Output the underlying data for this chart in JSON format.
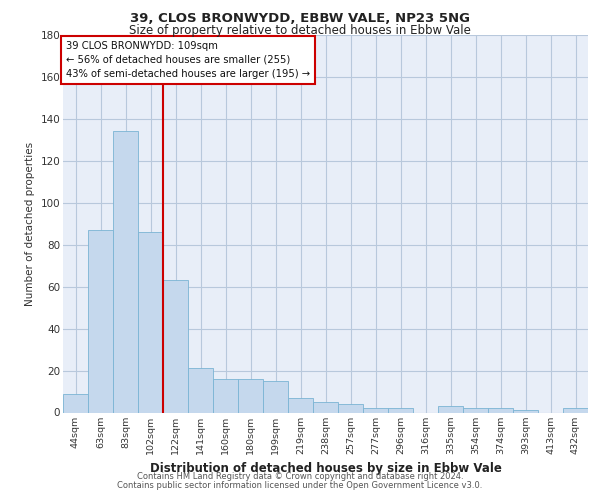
{
  "title1": "39, CLOS BRONWYDD, EBBW VALE, NP23 5NG",
  "title2": "Size of property relative to detached houses in Ebbw Vale",
  "xlabel": "Distribution of detached houses by size in Ebbw Vale",
  "ylabel": "Number of detached properties",
  "categories": [
    "44sqm",
    "63sqm",
    "83sqm",
    "102sqm",
    "122sqm",
    "141sqm",
    "160sqm",
    "180sqm",
    "199sqm",
    "219sqm",
    "238sqm",
    "257sqm",
    "277sqm",
    "296sqm",
    "316sqm",
    "335sqm",
    "354sqm",
    "374sqm",
    "393sqm",
    "413sqm",
    "432sqm"
  ],
  "values": [
    9,
    87,
    134,
    86,
    63,
    21,
    16,
    16,
    15,
    7,
    5,
    4,
    2,
    2,
    0,
    3,
    2,
    2,
    1,
    0,
    2
  ],
  "bar_color": "#c5d8ed",
  "bar_edge_color": "#7ab4d4",
  "grid_color": "#b8c8dc",
  "background_color": "#e8eef8",
  "vline_x": 3.5,
  "vline_color": "#cc0000",
  "annotation_text": "39 CLOS BRONWYDD: 109sqm\n← 56% of detached houses are smaller (255)\n43% of semi-detached houses are larger (195) →",
  "annotation_box_color": "#ffffff",
  "annotation_box_edge": "#cc0000",
  "ylim": [
    0,
    180
  ],
  "yticks": [
    0,
    20,
    40,
    60,
    80,
    100,
    120,
    140,
    160,
    180
  ],
  "footer1": "Contains HM Land Registry data © Crown copyright and database right 2024.",
  "footer2": "Contains public sector information licensed under the Open Government Licence v3.0."
}
